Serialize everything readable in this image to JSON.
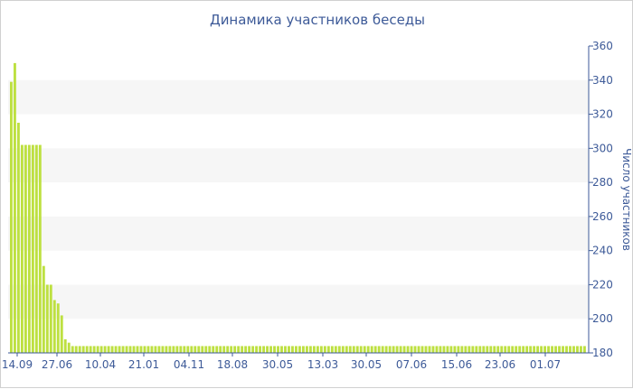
{
  "chart_data": {
    "type": "bar",
    "title": "Динамика участников беседы",
    "xlabel": "",
    "ylabel": "Число участников",
    "ylim": [
      180,
      360
    ],
    "yticks": [
      180,
      200,
      220,
      240,
      260,
      280,
      300,
      320,
      340,
      360
    ],
    "x_tick_labels": [
      "14.09",
      "27.06",
      "10.04",
      "21.01",
      "04.11",
      "18.08",
      "30.05",
      "13.03",
      "30.05",
      "07.06",
      "15.06",
      "23.06",
      "01.07"
    ],
    "bar_color": "#bde040",
    "grid": "alternating horizontal bands",
    "values": [
      339,
      350,
      315,
      302,
      302,
      302,
      302,
      302,
      302,
      231,
      220,
      220,
      211,
      209,
      202,
      188,
      186,
      184,
      184,
      184,
      184,
      184,
      184,
      184,
      184,
      184,
      184,
      184,
      184,
      184,
      184,
      184,
      184,
      184,
      184,
      184,
      184,
      184,
      184,
      184,
      184,
      184,
      184,
      184,
      184,
      184,
      184,
      184,
      184,
      184,
      184,
      184,
      184,
      184,
      184,
      184,
      184,
      184,
      184,
      184,
      184,
      184,
      184,
      184,
      184,
      184,
      184,
      184,
      184,
      184,
      184,
      184,
      184,
      184,
      184,
      184,
      184,
      184,
      184,
      184,
      184,
      184,
      184,
      184,
      184,
      184,
      184,
      184,
      184,
      184,
      184,
      184,
      184,
      184,
      184,
      184,
      184,
      184,
      184,
      184,
      184,
      184,
      184,
      184,
      184,
      184,
      184,
      184,
      184,
      184,
      184,
      184,
      184,
      184,
      184,
      184,
      184,
      184,
      184,
      184,
      184,
      184,
      184,
      184,
      184,
      184,
      184,
      184,
      184,
      184,
      184,
      184,
      184,
      184,
      184,
      184,
      184,
      184,
      184,
      184,
      184,
      184,
      184,
      184,
      184,
      184,
      184,
      184,
      184,
      184,
      184,
      184,
      184,
      184,
      184,
      184,
      184,
      184,
      184,
      184
    ]
  }
}
